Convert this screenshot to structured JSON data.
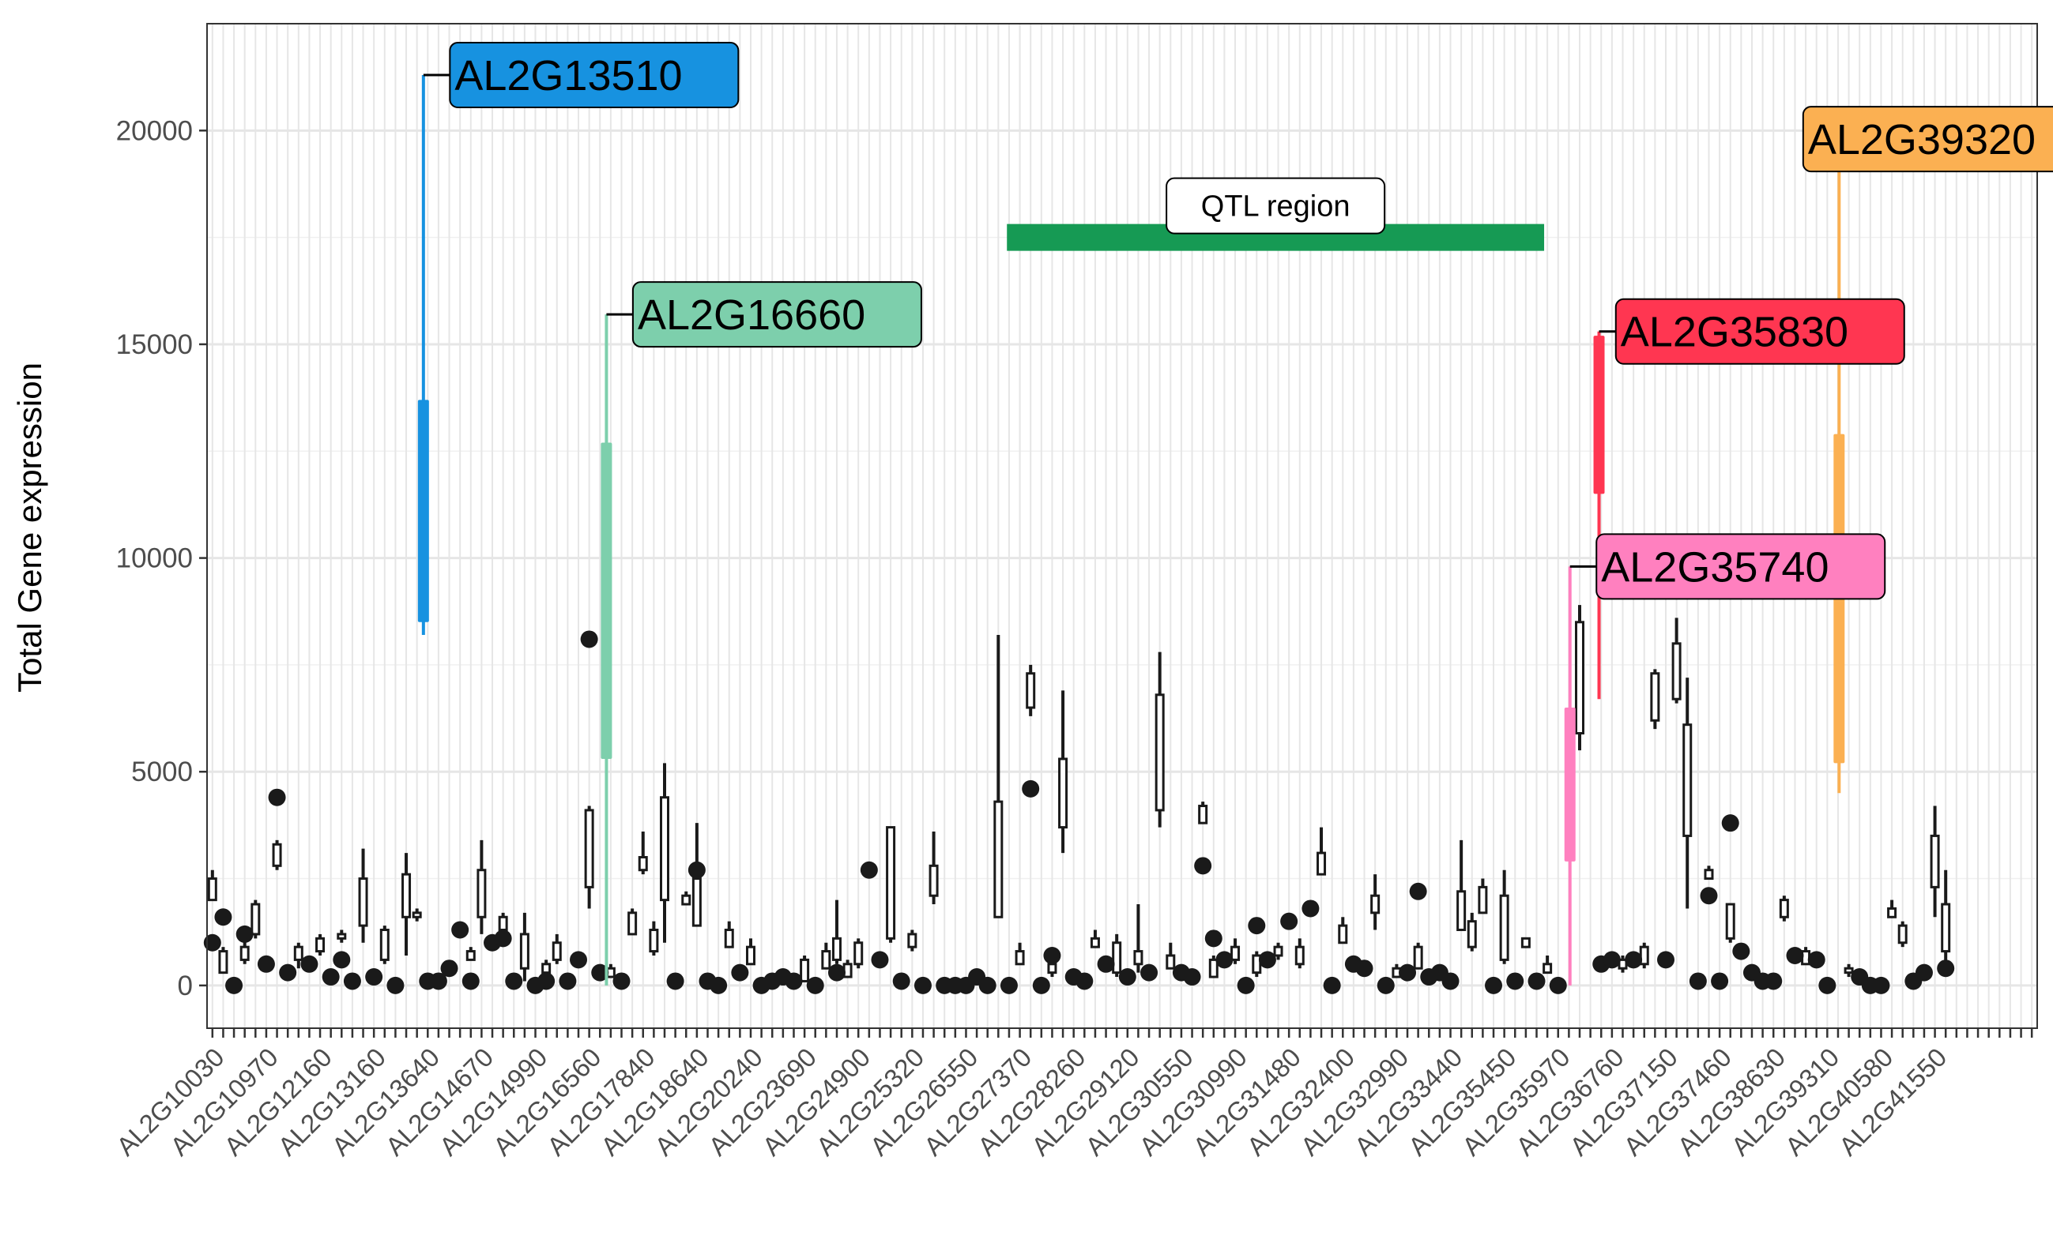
{
  "chart_data": {
    "type": "box",
    "title": "",
    "xlabel": "",
    "ylabel": "Total Gene expression",
    "ylim": [
      -1000,
      22500
    ],
    "y_ticks": [
      0,
      5000,
      10000,
      15000,
      20000
    ],
    "n_categories": 170,
    "x_tick_labels": [
      {
        "index": 0,
        "label": "AL2G10030"
      },
      {
        "index": 5,
        "label": "AL2G10970"
      },
      {
        "index": 10,
        "label": "AL2G12160"
      },
      {
        "index": 15,
        "label": "AL2G13160"
      },
      {
        "index": 20,
        "label": "AL2G13640"
      },
      {
        "index": 25,
        "label": "AL2G14670"
      },
      {
        "index": 30,
        "label": "AL2G14990"
      },
      {
        "index": 35,
        "label": "AL2G16560"
      },
      {
        "index": 40,
        "label": "AL2G17840"
      },
      {
        "index": 45,
        "label": "AL2G18640"
      },
      {
        "index": 50,
        "label": "AL2G20240"
      },
      {
        "index": 55,
        "label": "AL2G23690"
      },
      {
        "index": 60,
        "label": "AL2G24900"
      },
      {
        "index": 65,
        "label": "AL2G25320"
      },
      {
        "index": 70,
        "label": "AL2G26550"
      },
      {
        "index": 75,
        "label": "AL2G27370"
      },
      {
        "index": 80,
        "label": "AL2G28260"
      },
      {
        "index": 85,
        "label": "AL2G29120"
      },
      {
        "index": 90,
        "label": "AL2G30550"
      },
      {
        "index": 95,
        "label": "AL2G30990"
      },
      {
        "index": 100,
        "label": "AL2G31480"
      },
      {
        "index": 105,
        "label": "AL2G32400"
      },
      {
        "index": 110,
        "label": "AL2G32990"
      },
      {
        "index": 115,
        "label": "AL2G33440"
      },
      {
        "index": 120,
        "label": "AL2G35450"
      },
      {
        "index": 125,
        "label": "AL2G35970"
      },
      {
        "index": 130,
        "label": "AL2G36760"
      },
      {
        "index": 135,
        "label": "AL2G37150"
      },
      {
        "index": 140,
        "label": "AL2G37460"
      },
      {
        "index": 145,
        "label": "AL2G38630"
      },
      {
        "index": 150,
        "label": "AL2G39310"
      },
      {
        "index": 155,
        "label": "AL2G40580"
      },
      {
        "index": 160,
        "label": "AL2G41550"
      }
    ],
    "highlighted": [
      {
        "name": "AL2G13510",
        "index": 19.6,
        "min": 8200,
        "q1": 8500,
        "q3": 13700,
        "max": 21300,
        "color": "#1792e0",
        "label_x": 22.5,
        "label_y": 21300
      },
      {
        "name": "AL2G16660",
        "index": 36.6,
        "min": 0,
        "q1": 5300,
        "q3": 12700,
        "max": 15700,
        "color": "#7dcfac",
        "label_x": 39.5,
        "label_y": 15700
      },
      {
        "name": "AL2G35740",
        "index": 126.1,
        "min": 0,
        "q1": 2900,
        "q3": 6500,
        "max": 9800,
        "color": "#ff80bf",
        "label_x": 129,
        "label_y": 9800
      },
      {
        "name": "AL2G35830",
        "index": 128.8,
        "min": 6700,
        "q1": 11500,
        "q3": 15200,
        "max": 15300,
        "color": "#ff3651",
        "label_x": 130.8,
        "label_y": 15300
      },
      {
        "name": "AL2G39320",
        "index": 151.1,
        "min": 4500,
        "q1": 5200,
        "q3": 12900,
        "max": 19800,
        "color": "#fbb052",
        "label_x": 148.2,
        "label_y": 19800
      }
    ],
    "annotations": [
      {
        "text": "QTL region",
        "x_start": 73.8,
        "x_end": 123.7,
        "y": 17500,
        "color": "#169a54"
      }
    ],
    "boxes": [
      {
        "i": 0,
        "min": 2000,
        "q1": 2000,
        "q3": 2500,
        "max": 2700
      },
      {
        "i": 1,
        "min": 300,
        "q1": 300,
        "q3": 800,
        "max": 900
      },
      {
        "i": 3,
        "min": 500,
        "q1": 600,
        "q3": 900,
        "max": 1300
      },
      {
        "i": 4,
        "min": 1100,
        "q1": 1200,
        "q3": 1900,
        "max": 2000
      },
      {
        "i": 6,
        "min": 2700,
        "q1": 2800,
        "q3": 3300,
        "max": 3400
      },
      {
        "i": 8,
        "min": 400,
        "q1": 600,
        "q3": 900,
        "max": 1000
      },
      {
        "i": 10,
        "min": 700,
        "q1": 800,
        "q3": 1100,
        "max": 1200
      },
      {
        "i": 12,
        "min": 1000,
        "q1": 1100,
        "q3": 1200,
        "max": 1300
      },
      {
        "i": 14,
        "min": 1000,
        "q1": 1400,
        "q3": 2500,
        "max": 3200
      },
      {
        "i": 16,
        "min": 500,
        "q1": 600,
        "q3": 1300,
        "max": 1400
      },
      {
        "i": 18,
        "min": 700,
        "q1": 1600,
        "q3": 2600,
        "max": 3100
      },
      {
        "i": 19,
        "min": 1500,
        "q1": 1600,
        "q3": 1700,
        "max": 1800
      },
      {
        "i": 24,
        "min": 600,
        "q1": 600,
        "q3": 800,
        "max": 900
      },
      {
        "i": 25,
        "min": 1200,
        "q1": 1600,
        "q3": 2700,
        "max": 3400
      },
      {
        "i": 27,
        "min": 1300,
        "q1": 1300,
        "q3": 1600,
        "max": 1700
      },
      {
        "i": 29,
        "min": 100,
        "q1": 400,
        "q3": 1200,
        "max": 1700
      },
      {
        "i": 31,
        "min": 200,
        "q1": 300,
        "q3": 500,
        "max": 600
      },
      {
        "i": 32,
        "min": 500,
        "q1": 600,
        "q3": 1000,
        "max": 1200
      },
      {
        "i": 35,
        "min": 1800,
        "q1": 2300,
        "q3": 4100,
        "max": 4200
      },
      {
        "i": 37,
        "min": 200,
        "q1": 200,
        "q3": 400,
        "max": 500
      },
      {
        "i": 39,
        "min": 1200,
        "q1": 1200,
        "q3": 1700,
        "max": 1800
      },
      {
        "i": 40,
        "min": 2600,
        "q1": 2700,
        "q3": 3000,
        "max": 3600
      },
      {
        "i": 41,
        "min": 700,
        "q1": 800,
        "q3": 1300,
        "max": 1500
      },
      {
        "i": 42,
        "min": 1000,
        "q1": 2000,
        "q3": 4400,
        "max": 5200
      },
      {
        "i": 44,
        "min": 1900,
        "q1": 1900,
        "q3": 2100,
        "max": 2200
      },
      {
        "i": 45,
        "min": 1400,
        "q1": 1400,
        "q3": 2500,
        "max": 3800
      },
      {
        "i": 48,
        "min": 900,
        "q1": 900,
        "q3": 1300,
        "max": 1500
      },
      {
        "i": 50,
        "min": 500,
        "q1": 500,
        "q3": 900,
        "max": 1100
      },
      {
        "i": 55,
        "min": 100,
        "q1": 100,
        "q3": 600,
        "max": 700
      },
      {
        "i": 57,
        "min": 400,
        "q1": 400,
        "q3": 800,
        "max": 1000
      },
      {
        "i": 58,
        "min": 500,
        "q1": 600,
        "q3": 1100,
        "max": 2000
      },
      {
        "i": 59,
        "min": 200,
        "q1": 200,
        "q3": 500,
        "max": 600
      },
      {
        "i": 60,
        "min": 400,
        "q1": 500,
        "q3": 1000,
        "max": 1100
      },
      {
        "i": 63,
        "min": 1000,
        "q1": 1100,
        "q3": 3700,
        "max": 3700
      },
      {
        "i": 65,
        "min": 800,
        "q1": 900,
        "q3": 1200,
        "max": 1300
      },
      {
        "i": 67,
        "min": 1900,
        "q1": 2100,
        "q3": 2800,
        "max": 3600
      },
      {
        "i": 73,
        "min": 1600,
        "q1": 1600,
        "q3": 4300,
        "max": 8200
      },
      {
        "i": 75,
        "min": 500,
        "q1": 500,
        "q3": 800,
        "max": 1000
      },
      {
        "i": 76,
        "min": 6300,
        "q1": 6500,
        "q3": 7300,
        "max": 7500
      },
      {
        "i": 78,
        "min": 200,
        "q1": 300,
        "q3": 500,
        "max": 700
      },
      {
        "i": 79,
        "min": 3100,
        "q1": 3700,
        "q3": 5300,
        "max": 6900
      },
      {
        "i": 82,
        "min": 900,
        "q1": 900,
        "q3": 1100,
        "max": 1300
      },
      {
        "i": 84,
        "min": 200,
        "q1": 300,
        "q3": 1000,
        "max": 1200
      },
      {
        "i": 86,
        "min": 300,
        "q1": 500,
        "q3": 800,
        "max": 1900
      },
      {
        "i": 88,
        "min": 3700,
        "q1": 4100,
        "q3": 6800,
        "max": 7800
      },
      {
        "i": 89,
        "min": 400,
        "q1": 400,
        "q3": 700,
        "max": 1000
      },
      {
        "i": 92,
        "min": 3800,
        "q1": 3800,
        "q3": 4200,
        "max": 4300
      },
      {
        "i": 93,
        "min": 200,
        "q1": 200,
        "q3": 600,
        "max": 700
      },
      {
        "i": 95,
        "min": 500,
        "q1": 600,
        "q3": 900,
        "max": 1100
      },
      {
        "i": 97,
        "min": 200,
        "q1": 300,
        "q3": 700,
        "max": 800
      },
      {
        "i": 99,
        "min": 600,
        "q1": 700,
        "q3": 900,
        "max": 1000
      },
      {
        "i": 101,
        "min": 400,
        "q1": 500,
        "q3": 900,
        "max": 1100
      },
      {
        "i": 103,
        "min": 2600,
        "q1": 2600,
        "q3": 3100,
        "max": 3700
      },
      {
        "i": 105,
        "min": 1000,
        "q1": 1000,
        "q3": 1400,
        "max": 1600
      },
      {
        "i": 108,
        "min": 1300,
        "q1": 1700,
        "q3": 2100,
        "max": 2600
      },
      {
        "i": 110,
        "min": 200,
        "q1": 200,
        "q3": 400,
        "max": 500
      },
      {
        "i": 112,
        "min": 400,
        "q1": 400,
        "q3": 900,
        "max": 1000
      },
      {
        "i": 116,
        "min": 1300,
        "q1": 1300,
        "q3": 2200,
        "max": 3400
      },
      {
        "i": 117,
        "min": 800,
        "q1": 900,
        "q3": 1500,
        "max": 1700
      },
      {
        "i": 118,
        "min": 1700,
        "q1": 1700,
        "q3": 2300,
        "max": 2500
      },
      {
        "i": 120,
        "min": 500,
        "q1": 600,
        "q3": 2100,
        "max": 2700
      },
      {
        "i": 122,
        "min": 900,
        "q1": 900,
        "q3": 1100,
        "max": 1100
      },
      {
        "i": 124,
        "min": 300,
        "q1": 300,
        "q3": 500,
        "max": 700
      },
      {
        "i": 127,
        "min": 5500,
        "q1": 5900,
        "q3": 8500,
        "max": 8900
      },
      {
        "i": 131,
        "min": 300,
        "q1": 400,
        "q3": 600,
        "max": 700
      },
      {
        "i": 133,
        "min": 400,
        "q1": 500,
        "q3": 900,
        "max": 1000
      },
      {
        "i": 134,
        "min": 6000,
        "q1": 6200,
        "q3": 7300,
        "max": 7400
      },
      {
        "i": 136,
        "min": 6600,
        "q1": 6700,
        "q3": 8000,
        "max": 8600
      },
      {
        "i": 137,
        "min": 1800,
        "q1": 3500,
        "q3": 6100,
        "max": 7200
      },
      {
        "i": 139,
        "min": 2500,
        "q1": 2500,
        "q3": 2700,
        "max": 2800
      },
      {
        "i": 141,
        "min": 1000,
        "q1": 1100,
        "q3": 1900,
        "max": 1900
      },
      {
        "i": 146,
        "min": 1500,
        "q1": 1600,
        "q3": 2000,
        "max": 2100
      },
      {
        "i": 148,
        "min": 500,
        "q1": 500,
        "q3": 800,
        "max": 900
      },
      {
        "i": 152,
        "min": 200,
        "q1": 300,
        "q3": 400,
        "max": 500
      },
      {
        "i": 156,
        "min": 1600,
        "q1": 1600,
        "q3": 1800,
        "max": 2000
      },
      {
        "i": 157,
        "min": 900,
        "q1": 1000,
        "q3": 1400,
        "max": 1500
      },
      {
        "i": 160,
        "min": 1600,
        "q1": 2300,
        "q3": 3500,
        "max": 4200
      },
      {
        "i": 161,
        "min": 500,
        "q1": 800,
        "q3": 1900,
        "max": 2700
      }
    ],
    "points": [
      {
        "i": 0,
        "y": 1000
      },
      {
        "i": 1,
        "y": 1600
      },
      {
        "i": 2,
        "y": 0
      },
      {
        "i": 3,
        "y": 1200
      },
      {
        "i": 5,
        "y": 500
      },
      {
        "i": 6,
        "y": 4400
      },
      {
        "i": 7,
        "y": 300
      },
      {
        "i": 9,
        "y": 500
      },
      {
        "i": 11,
        "y": 200
      },
      {
        "i": 12,
        "y": 600
      },
      {
        "i": 13,
        "y": 100
      },
      {
        "i": 15,
        "y": 200
      },
      {
        "i": 17,
        "y": 0
      },
      {
        "i": 20,
        "y": 100
      },
      {
        "i": 21,
        "y": 100
      },
      {
        "i": 22,
        "y": 400
      },
      {
        "i": 23,
        "y": 1300
      },
      {
        "i": 24,
        "y": 100
      },
      {
        "i": 26,
        "y": 1000
      },
      {
        "i": 27,
        "y": 1100
      },
      {
        "i": 28,
        "y": 100
      },
      {
        "i": 30,
        "y": 0
      },
      {
        "i": 31,
        "y": 100
      },
      {
        "i": 33,
        "y": 100
      },
      {
        "i": 34,
        "y": 600
      },
      {
        "i": 35,
        "y": 8100
      },
      {
        "i": 36,
        "y": 300
      },
      {
        "i": 38,
        "y": 100
      },
      {
        "i": 43,
        "y": 100
      },
      {
        "i": 45,
        "y": 2700
      },
      {
        "i": 46,
        "y": 100
      },
      {
        "i": 47,
        "y": 0
      },
      {
        "i": 49,
        "y": 300
      },
      {
        "i": 51,
        "y": 0
      },
      {
        "i": 52,
        "y": 100
      },
      {
        "i": 53,
        "y": 200
      },
      {
        "i": 54,
        "y": 100
      },
      {
        "i": 56,
        "y": 0
      },
      {
        "i": 58,
        "y": 300
      },
      {
        "i": 61,
        "y": 2700
      },
      {
        "i": 62,
        "y": 600
      },
      {
        "i": 64,
        "y": 100
      },
      {
        "i": 66,
        "y": 0
      },
      {
        "i": 68,
        "y": 0
      },
      {
        "i": 69,
        "y": 0
      },
      {
        "i": 70,
        "y": 0
      },
      {
        "i": 71,
        "y": 200
      },
      {
        "i": 72,
        "y": 0
      },
      {
        "i": 74,
        "y": 0
      },
      {
        "i": 76,
        "y": 4600
      },
      {
        "i": 77,
        "y": 0
      },
      {
        "i": 78,
        "y": 700
      },
      {
        "i": 80,
        "y": 200
      },
      {
        "i": 81,
        "y": 100
      },
      {
        "i": 83,
        "y": 500
      },
      {
        "i": 85,
        "y": 200
      },
      {
        "i": 87,
        "y": 300
      },
      {
        "i": 90,
        "y": 300
      },
      {
        "i": 91,
        "y": 200
      },
      {
        "i": 92,
        "y": 2800
      },
      {
        "i": 93,
        "y": 1100
      },
      {
        "i": 94,
        "y": 600
      },
      {
        "i": 96,
        "y": 0
      },
      {
        "i": 97,
        "y": 1400
      },
      {
        "i": 98,
        "y": 600
      },
      {
        "i": 100,
        "y": 1500
      },
      {
        "i": 102,
        "y": 1800
      },
      {
        "i": 104,
        "y": 0
      },
      {
        "i": 106,
        "y": 500
      },
      {
        "i": 107,
        "y": 400
      },
      {
        "i": 109,
        "y": 0
      },
      {
        "i": 111,
        "y": 300
      },
      {
        "i": 112,
        "y": 2200
      },
      {
        "i": 113,
        "y": 200
      },
      {
        "i": 114,
        "y": 300
      },
      {
        "i": 115,
        "y": 100
      },
      {
        "i": 119,
        "y": 0
      },
      {
        "i": 121,
        "y": 100
      },
      {
        "i": 123,
        "y": 100
      },
      {
        "i": 125,
        "y": 0
      },
      {
        "i": 129,
        "y": 500
      },
      {
        "i": 130,
        "y": 600
      },
      {
        "i": 132,
        "y": 600
      },
      {
        "i": 135,
        "y": 600
      },
      {
        "i": 138,
        "y": 100
      },
      {
        "i": 139,
        "y": 2100
      },
      {
        "i": 140,
        "y": 100
      },
      {
        "i": 141,
        "y": 3800
      },
      {
        "i": 142,
        "y": 800
      },
      {
        "i": 143,
        "y": 300
      },
      {
        "i": 144,
        "y": 100
      },
      {
        "i": 145,
        "y": 100
      },
      {
        "i": 147,
        "y": 700
      },
      {
        "i": 149,
        "y": 600
      },
      {
        "i": 150,
        "y": 0
      },
      {
        "i": 153,
        "y": 200
      },
      {
        "i": 154,
        "y": 0
      },
      {
        "i": 155,
        "y": 0
      },
      {
        "i": 158,
        "y": 100
      },
      {
        "i": 159,
        "y": 300
      },
      {
        "i": 161,
        "y": 400
      }
    ]
  }
}
